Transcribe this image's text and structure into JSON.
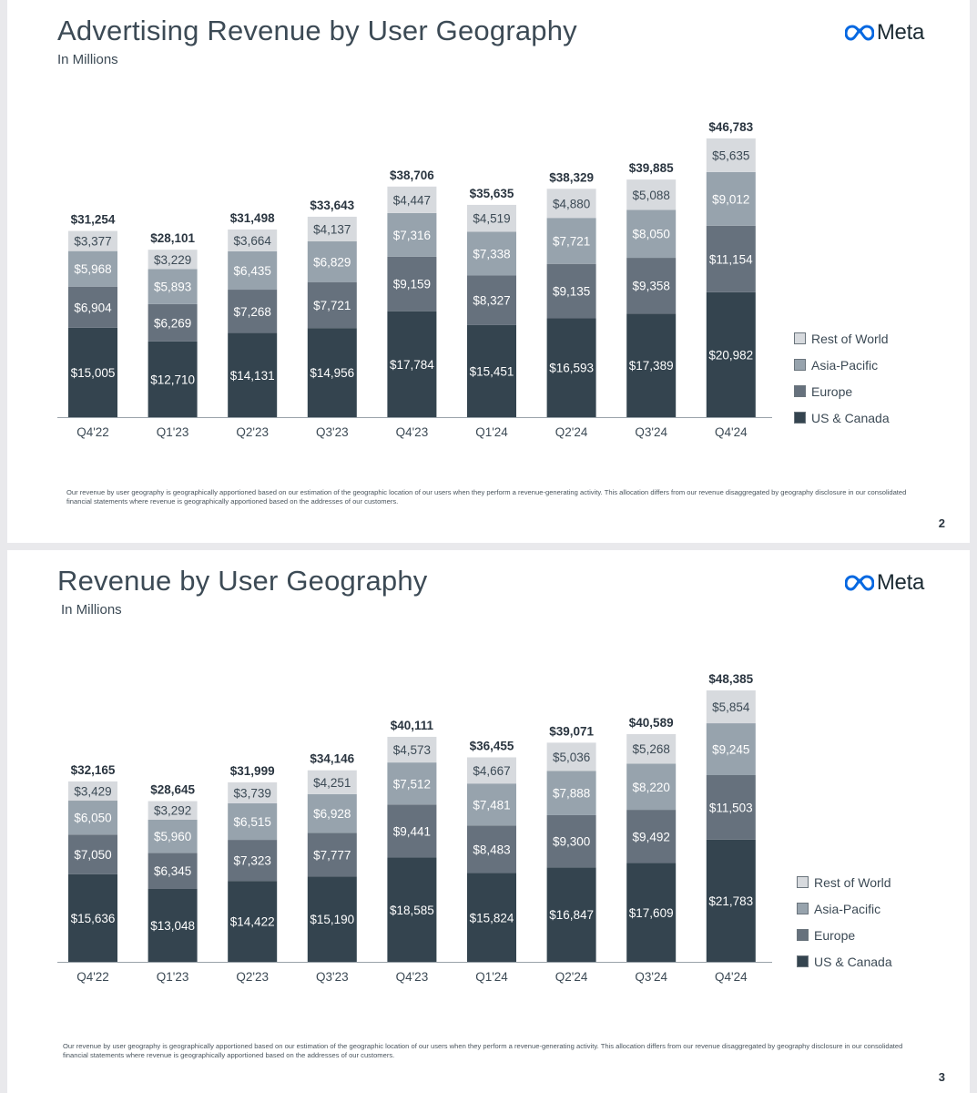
{
  "logo": {
    "text": "Meta",
    "icon": "meta-infinity-icon",
    "color": "#0668E1"
  },
  "legend": [
    {
      "label": "Rest of World",
      "color": "#d7dade"
    },
    {
      "label": "Asia-Pacific",
      "color": "#97a3ad"
    },
    {
      "label": "Europe",
      "color": "#66717d"
    },
    {
      "label": "US & Canada",
      "color": "#34444f"
    }
  ],
  "slides": [
    {
      "title": "Advertising Revenue by User Geography",
      "subtitle": "In Millions",
      "footnote": "Our revenue by user geography is geographically apportioned based on our estimation of the geographic location of our users when they perform a revenue-generating activity. This allocation differs from our revenue disaggregated by geography disclosure in our consolidated financial statements where revenue is geographically apportioned based on the addresses of our customers.",
      "page_number": "2"
    },
    {
      "title": "Revenue by User Geography",
      "subtitle": "In Millions",
      "footnote": "Our revenue by user geography is geographically apportioned based on our estimation of the geographic location of our users when they perform a revenue-generating activity. This allocation differs from our revenue disaggregated by geography disclosure in our consolidated financial statements where revenue is geographically apportioned based on the addresses of our customers.",
      "page_number": "3"
    }
  ],
  "chart_data": [
    {
      "type": "bar",
      "stacked": true,
      "title": "Advertising Revenue by User Geography",
      "subtitle": "In Millions",
      "categories": [
        "Q4'22",
        "Q1'23",
        "Q2'23",
        "Q3'23",
        "Q4'23",
        "Q1'24",
        "Q2'24",
        "Q3'24",
        "Q4'24"
      ],
      "series": [
        {
          "name": "US & Canada",
          "color": "#34444f",
          "values": [
            15005,
            12710,
            14131,
            14956,
            17784,
            15451,
            16593,
            17389,
            20982
          ],
          "labels": [
            "$15,005",
            "$12,710",
            "$14,131",
            "$14,956",
            "$17,784",
            "$15,451",
            "$16,593",
            "$17,389",
            "$20,982"
          ]
        },
        {
          "name": "Europe",
          "color": "#66717d",
          "values": [
            6904,
            6269,
            7268,
            7721,
            9159,
            8327,
            9135,
            9358,
            11154
          ],
          "labels": [
            "$6,904",
            "$6,269",
            "$7,268",
            "$7,721",
            "$9,159",
            "$8,327",
            "$9,135",
            "$9,358",
            "$11,154"
          ]
        },
        {
          "name": "Asia-Pacific",
          "color": "#97a3ad",
          "values": [
            5968,
            5893,
            6435,
            6829,
            7316,
            7338,
            7721,
            8050,
            9012
          ],
          "labels": [
            "$5,968",
            "$5,893",
            "$6,435",
            "$6,829",
            "$7,316",
            "$7,338",
            "$7,721",
            "$8,050",
            "$9,012"
          ]
        },
        {
          "name": "Rest of World",
          "color": "#d7dade",
          "values": [
            3377,
            3229,
            3664,
            4137,
            4447,
            4519,
            4880,
            5088,
            5635
          ],
          "labels": [
            "$3,377",
            "$3,229",
            "$3,664",
            "$4,137",
            "$4,447",
            "$4,519",
            "$4,880",
            "$5,088",
            "$5,635"
          ]
        }
      ],
      "totals": [
        31254,
        28101,
        31498,
        33643,
        38706,
        35635,
        38329,
        39885,
        46783
      ],
      "total_labels": [
        "$31,254",
        "$28,101",
        "$31,498",
        "$33,643",
        "$38,706",
        "$35,635",
        "$38,329",
        "$39,885",
        "$46,783"
      ],
      "legend_position": "right",
      "grid": false
    },
    {
      "type": "bar",
      "stacked": true,
      "title": "Revenue by User Geography",
      "subtitle": "In Millions",
      "categories": [
        "Q4'22",
        "Q1'23",
        "Q2'23",
        "Q3'23",
        "Q4'23",
        "Q1'24",
        "Q2'24",
        "Q3'24",
        "Q4'24"
      ],
      "series": [
        {
          "name": "US & Canada",
          "color": "#34444f",
          "values": [
            15636,
            13048,
            14422,
            15190,
            18585,
            15824,
            16847,
            17609,
            21783
          ],
          "labels": [
            "$15,636",
            "$13,048",
            "$14,422",
            "$15,190",
            "$18,585",
            "$15,824",
            "$16,847",
            "$17,609",
            "$21,783"
          ]
        },
        {
          "name": "Europe",
          "color": "#66717d",
          "values": [
            7050,
            6345,
            7323,
            7777,
            9441,
            8483,
            9300,
            9492,
            11503
          ],
          "labels": [
            "$7,050",
            "$6,345",
            "$7,323",
            "$7,777",
            "$9,441",
            "$8,483",
            "$9,300",
            "$9,492",
            "$11,503"
          ]
        },
        {
          "name": "Asia-Pacific",
          "color": "#97a3ad",
          "values": [
            6050,
            5960,
            6515,
            6928,
            7512,
            7481,
            7888,
            8220,
            9245
          ],
          "labels": [
            "$6,050",
            "$5,960",
            "$6,515",
            "$6,928",
            "$7,512",
            "$7,481",
            "$7,888",
            "$8,220",
            "$9,245"
          ]
        },
        {
          "name": "Rest of World",
          "color": "#d7dade",
          "values": [
            3429,
            3292,
            3739,
            4251,
            4573,
            4667,
            5036,
            5268,
            5854
          ],
          "labels": [
            "$3,429",
            "$3,292",
            "$3,739",
            "$4,251",
            "$4,573",
            "$4,667",
            "$5,036",
            "$5,268",
            "$5,854"
          ]
        }
      ],
      "totals": [
        32165,
        28645,
        31999,
        34146,
        40111,
        36455,
        39071,
        40589,
        48385
      ],
      "total_labels": [
        "$32,165",
        "$28,645",
        "$31,999",
        "$34,146",
        "$40,111",
        "$36,455",
        "$39,071",
        "$40,589",
        "$48,385"
      ],
      "legend_position": "right",
      "grid": false
    }
  ]
}
